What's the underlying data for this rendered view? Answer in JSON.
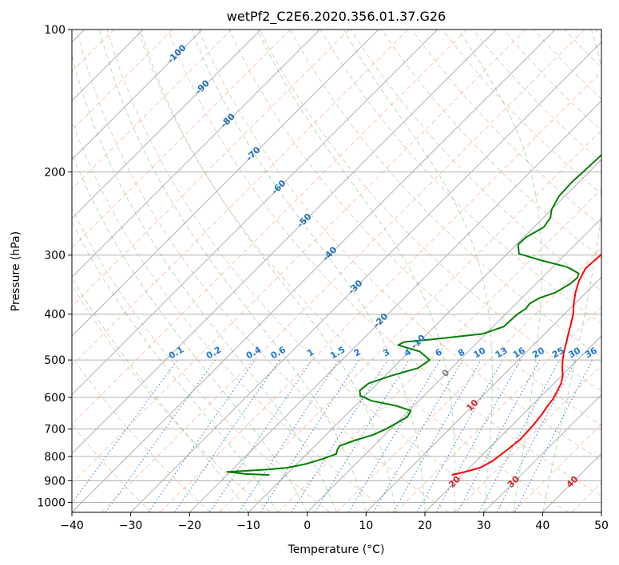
{
  "chart_data": {
    "type": "line",
    "title": "wetPf2_C2E6.2020.356.01.37.G26",
    "xlabel": "Temperature (°C)",
    "ylabel": "Pressure (hPa)",
    "xlim": [
      -40,
      50
    ],
    "ylim": [
      1050,
      100
    ],
    "y_scale": "log",
    "grid": true,
    "x_ticks": [
      -40,
      -30,
      -20,
      -10,
      0,
      10,
      20,
      30,
      40,
      50
    ],
    "y_ticks": [
      100,
      200,
      300,
      400,
      500,
      600,
      700,
      800,
      900,
      1000
    ],
    "colors": {
      "temperature": "#ff0000",
      "dewpoint": "#008000",
      "dry_adiabat": "#d2b48c",
      "moist_adiabat": "#2ca02c",
      "isotherm_skewed": "#ff7f50",
      "mixing_ratio": "#1f77d4",
      "grid": "#b0b0b0",
      "zero_isotherm_label": "#808080",
      "positive_isotherm_label": "#d62728",
      "negative_isotherm_label": "#1f6fb4"
    },
    "series": [
      {
        "key": "temperature",
        "points": [
          [
            18.2,
            875
          ],
          [
            20.2,
            860
          ],
          [
            21.8,
            845
          ],
          [
            22.7,
            820
          ],
          [
            23.3,
            780
          ],
          [
            23.8,
            735
          ],
          [
            23.6,
            690
          ],
          [
            23.2,
            650
          ],
          [
            22.8,
            630
          ],
          [
            22.5,
            605
          ],
          [
            21.8,
            580
          ],
          [
            21.2,
            560
          ],
          [
            20.2,
            540
          ],
          [
            18.8,
            520
          ],
          [
            17.5,
            500
          ],
          [
            16.3,
            480
          ],
          [
            15.2,
            460
          ],
          [
            14.0,
            440
          ],
          [
            12.8,
            420
          ],
          [
            11.5,
            400
          ],
          [
            9.8,
            380
          ],
          [
            8.2,
            360
          ],
          [
            6.8,
            340
          ],
          [
            5.8,
            320
          ],
          [
            6.1,
            300
          ],
          [
            6.5,
            280
          ],
          [
            5.6,
            260
          ],
          [
            5.4,
            240
          ],
          [
            5.2,
            220
          ],
          [
            5.3,
            200
          ],
          [
            5.5,
            180
          ],
          [
            5.7,
            160
          ],
          [
            5.6,
            145
          ],
          [
            5.9,
            130
          ],
          [
            7.4,
            118
          ],
          [
            9.3,
            110
          ],
          [
            12.8,
            100
          ]
        ]
      },
      {
        "key": "dewpoint",
        "points": [
          [
            -12.8,
            875
          ],
          [
            -17.0,
            871
          ],
          [
            -20.5,
            862
          ],
          [
            -17.5,
            858
          ],
          [
            -14.0,
            852
          ],
          [
            -11.0,
            845
          ],
          [
            -8.5,
            830
          ],
          [
            -6.5,
            810
          ],
          [
            -5.0,
            790
          ],
          [
            -5.5,
            775
          ],
          [
            -5.8,
            760
          ],
          [
            -4.2,
            740
          ],
          [
            -2.0,
            720
          ],
          [
            -0.8,
            700
          ],
          [
            0.8,
            660
          ],
          [
            0.3,
            640
          ],
          [
            -3.0,
            625
          ],
          [
            -8.0,
            610
          ],
          [
            -10.8,
            595
          ],
          [
            -11.8,
            580
          ],
          [
            -11.5,
            560
          ],
          [
            -9.0,
            540
          ],
          [
            -5.7,
            520
          ],
          [
            -5.1,
            500
          ],
          [
            -8.2,
            480
          ],
          [
            -13.0,
            465
          ],
          [
            -12.5,
            458
          ],
          [
            -8.0,
            452
          ],
          [
            -0.5,
            440
          ],
          [
            1.8,
            425
          ],
          [
            2.0,
            400
          ],
          [
            2.5,
            390
          ],
          [
            2.3,
            380
          ],
          [
            3.0,
            370
          ],
          [
            4.8,
            360
          ],
          [
            5.8,
            345
          ],
          [
            6.0,
            335
          ],
          [
            5.5,
            328
          ],
          [
            2.5,
            318
          ],
          [
            -3.0,
            308
          ],
          [
            -8.0,
            298
          ],
          [
            -9.7,
            285
          ],
          [
            -9.6,
            275
          ],
          [
            -8.3,
            262
          ],
          [
            -8.8,
            250
          ],
          [
            -10.0,
            240
          ],
          [
            -11.0,
            225
          ],
          [
            -11.2,
            210
          ],
          [
            -11.0,
            200
          ],
          [
            -10.8,
            185
          ],
          [
            -10.8,
            175
          ],
          [
            -10.2,
            165
          ],
          [
            -8.5,
            155
          ],
          [
            -7.4,
            140
          ],
          [
            -6.4,
            125
          ],
          [
            -4.5,
            115
          ],
          [
            -2.2,
            105
          ],
          [
            -0.5,
            100
          ]
        ]
      }
    ],
    "mixing_ratio_labels": [
      "0.1",
      "0.2",
      "0.4",
      "0.6",
      "1",
      "1.5",
      "2",
      "3",
      "4",
      "6",
      "8",
      "10",
      "13",
      "16",
      "20",
      "25",
      "30",
      "36"
    ],
    "isotherm_labels": [
      "-100",
      "-90",
      "-80",
      "-70",
      "-60",
      "-50",
      "-40",
      "-30",
      "-20",
      "-10",
      "0",
      "10",
      "20",
      "30",
      "40"
    ]
  }
}
